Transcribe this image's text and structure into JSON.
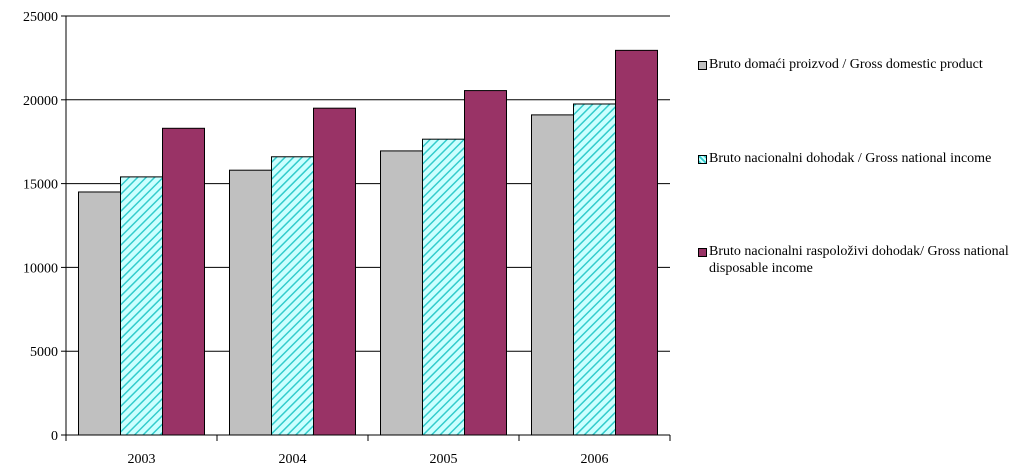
{
  "chart_data": {
    "type": "bar",
    "categories": [
      "2003",
      "2004",
      "2005",
      "2006"
    ],
    "series": [
      {
        "name": "Bruto domaći proizvod / Gross domestic product",
        "values": [
          14500,
          15800,
          16950,
          19100
        ],
        "color": "#c0c0c0",
        "pattern": "solid"
      },
      {
        "name": "Bruto nacionalni dohodak / Gross national income",
        "values": [
          15400,
          16600,
          17650,
          19750
        ],
        "color": "#ccffff",
        "pattern": "diagonal-hatch",
        "hatch_color": "#33cccc"
      },
      {
        "name": "Bruto nacionalni raspoloživi dohodak/ Gross national disposable income",
        "values": [
          18300,
          19500,
          20550,
          22950
        ],
        "color": "#993366",
        "pattern": "solid"
      }
    ],
    "y_ticks": [
      "0",
      "5000",
      "10000",
      "15000",
      "20000",
      "25000"
    ],
    "ylim": [
      0,
      25000
    ],
    "grid": "horizontal",
    "legend": "right"
  }
}
